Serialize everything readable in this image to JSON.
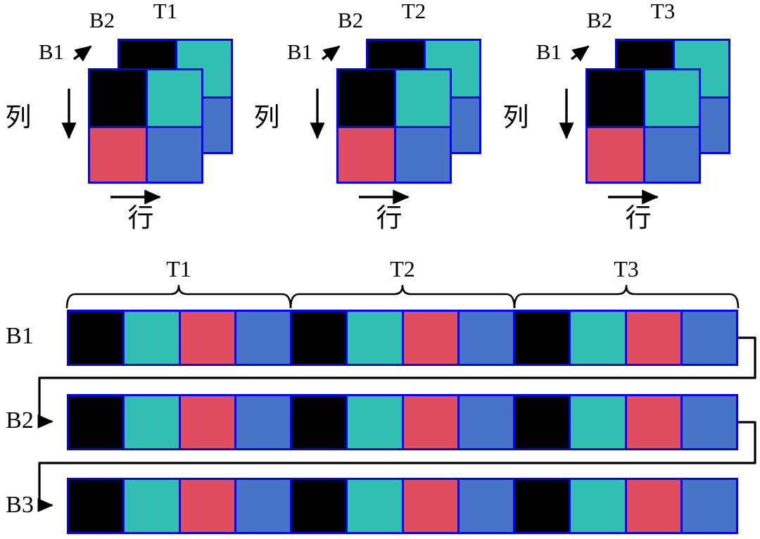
{
  "colors": {
    "black": "#000000",
    "teal": "#32BEB2",
    "red": "#DF4D61",
    "blue": "#4874C8",
    "border": "#0000F5",
    "line": "#000000"
  },
  "tile_diagram": {
    "tile_cells": [
      [
        "black",
        "teal"
      ],
      [
        "red",
        "blue"
      ]
    ],
    "groups": [
      {
        "tile_label": "T1",
        "back_label": "B2",
        "front_label": "B1",
        "col_axis_label": "列",
        "row_axis_label": "行"
      },
      {
        "tile_label": "T2",
        "back_label": "B2",
        "front_label": "B1",
        "col_axis_label": "列",
        "row_axis_label": "行"
      },
      {
        "tile_label": "T3",
        "back_label": "B2",
        "front_label": "B1",
        "col_axis_label": "列",
        "row_axis_label": "行"
      }
    ]
  },
  "memory_layout": {
    "braces": [
      "T1",
      "T2",
      "T3"
    ],
    "rows": [
      {
        "label": "B1",
        "cells": [
          "black",
          "teal",
          "red",
          "blue",
          "black",
          "teal",
          "red",
          "blue",
          "black",
          "teal",
          "red",
          "blue"
        ]
      },
      {
        "label": "B2",
        "cells": [
          "black",
          "teal",
          "red",
          "blue",
          "black",
          "teal",
          "red",
          "blue",
          "black",
          "teal",
          "red",
          "blue"
        ]
      },
      {
        "label": "B3",
        "cells": [
          "black",
          "teal",
          "red",
          "blue",
          "black",
          "teal",
          "red",
          "blue",
          "black",
          "teal",
          "red",
          "blue"
        ]
      }
    ]
  }
}
